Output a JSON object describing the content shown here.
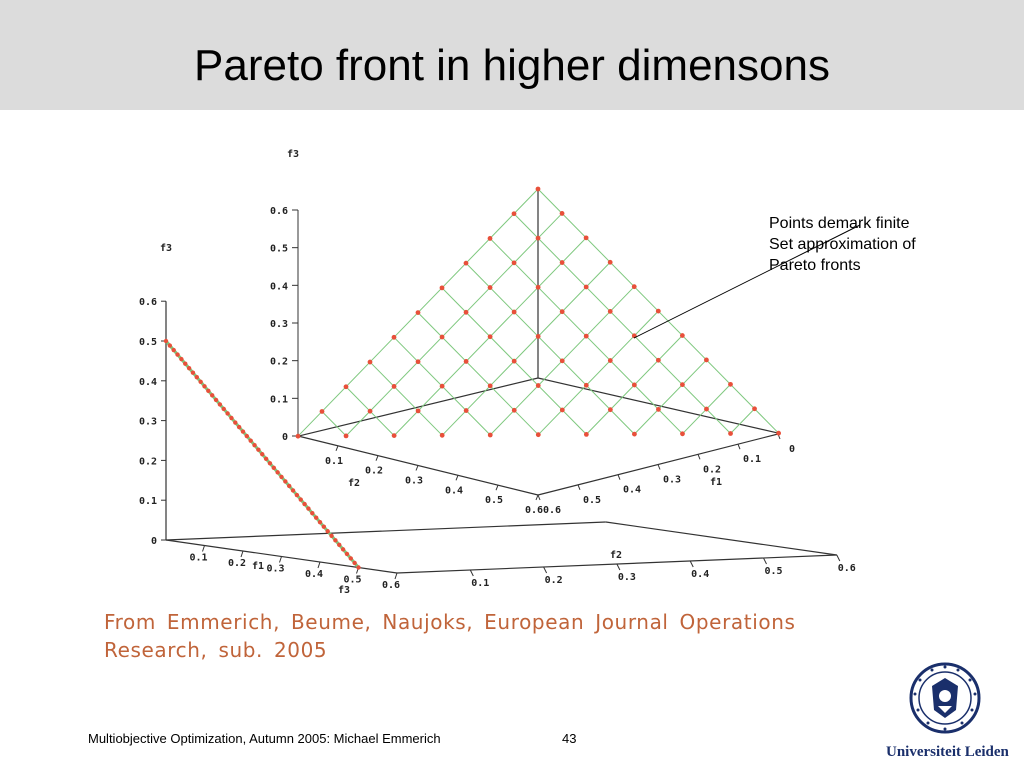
{
  "slide": {
    "title": "Pareto front in higher dimensons",
    "annotation_lines": [
      "Points demark finite",
      "Set approximation of",
      "Pareto fronts"
    ],
    "citation_lines": [
      "From Emmerich, Beume, Naujoks, European Journal Operations",
      "Research, sub. 2005"
    ],
    "footer": "Multiobjective Optimization, Autumn 2005: Michael Emmerich",
    "page_number": "43",
    "logo_text": "Universiteit Leiden"
  },
  "colors": {
    "title_bar": "#dcdcdc",
    "citation": "#c0643a",
    "grid_green": "#7ec87e",
    "point_red": "#e8503a",
    "logo_blue": "#1a2f6b"
  },
  "chart_data": [
    {
      "type": "scatter",
      "name": "left-plot-2d-front",
      "axes": {
        "f1": {
          "label": "f1",
          "ticks": [
            "0",
            "0.1",
            "0.2",
            "0.3",
            "0.4",
            "0.5",
            "0.6"
          ]
        },
        "f2": {
          "label": "f2",
          "ticks": [
            "0",
            "0.1",
            "0.2",
            "0.3",
            "0.4",
            "0.5",
            "0.6"
          ]
        },
        "f3": {
          "label": "f3",
          "ticks": [
            "0",
            "0.1",
            "0.2",
            "0.3",
            "0.4",
            "0.5",
            "0.6"
          ]
        }
      },
      "axis_labels_extra": [
        "f3"
      ],
      "points_front": "line from f3=0.5 to f1=0.5",
      "point_count": 50
    },
    {
      "type": "scatter",
      "name": "right-plot-3d-front",
      "axes": {
        "f1": {
          "label": "f1",
          "ticks": [
            "0",
            "0.1",
            "0.2",
            "0.3",
            "0.4",
            "0.5",
            "0.6"
          ]
        },
        "f2": {
          "label": "f2",
          "ticks": [
            "0",
            "0.1",
            "0.2",
            "0.3",
            "0.4",
            "0.5",
            "0.6"
          ]
        },
        "f3": {
          "label": "f3",
          "ticks": [
            "0",
            "0.1",
            "0.2",
            "0.3",
            "0.4",
            "0.5",
            "0.6"
          ]
        }
      },
      "simplex": "f1 + f2 + f3 = 0.6",
      "grid_divisions": 10
    }
  ]
}
